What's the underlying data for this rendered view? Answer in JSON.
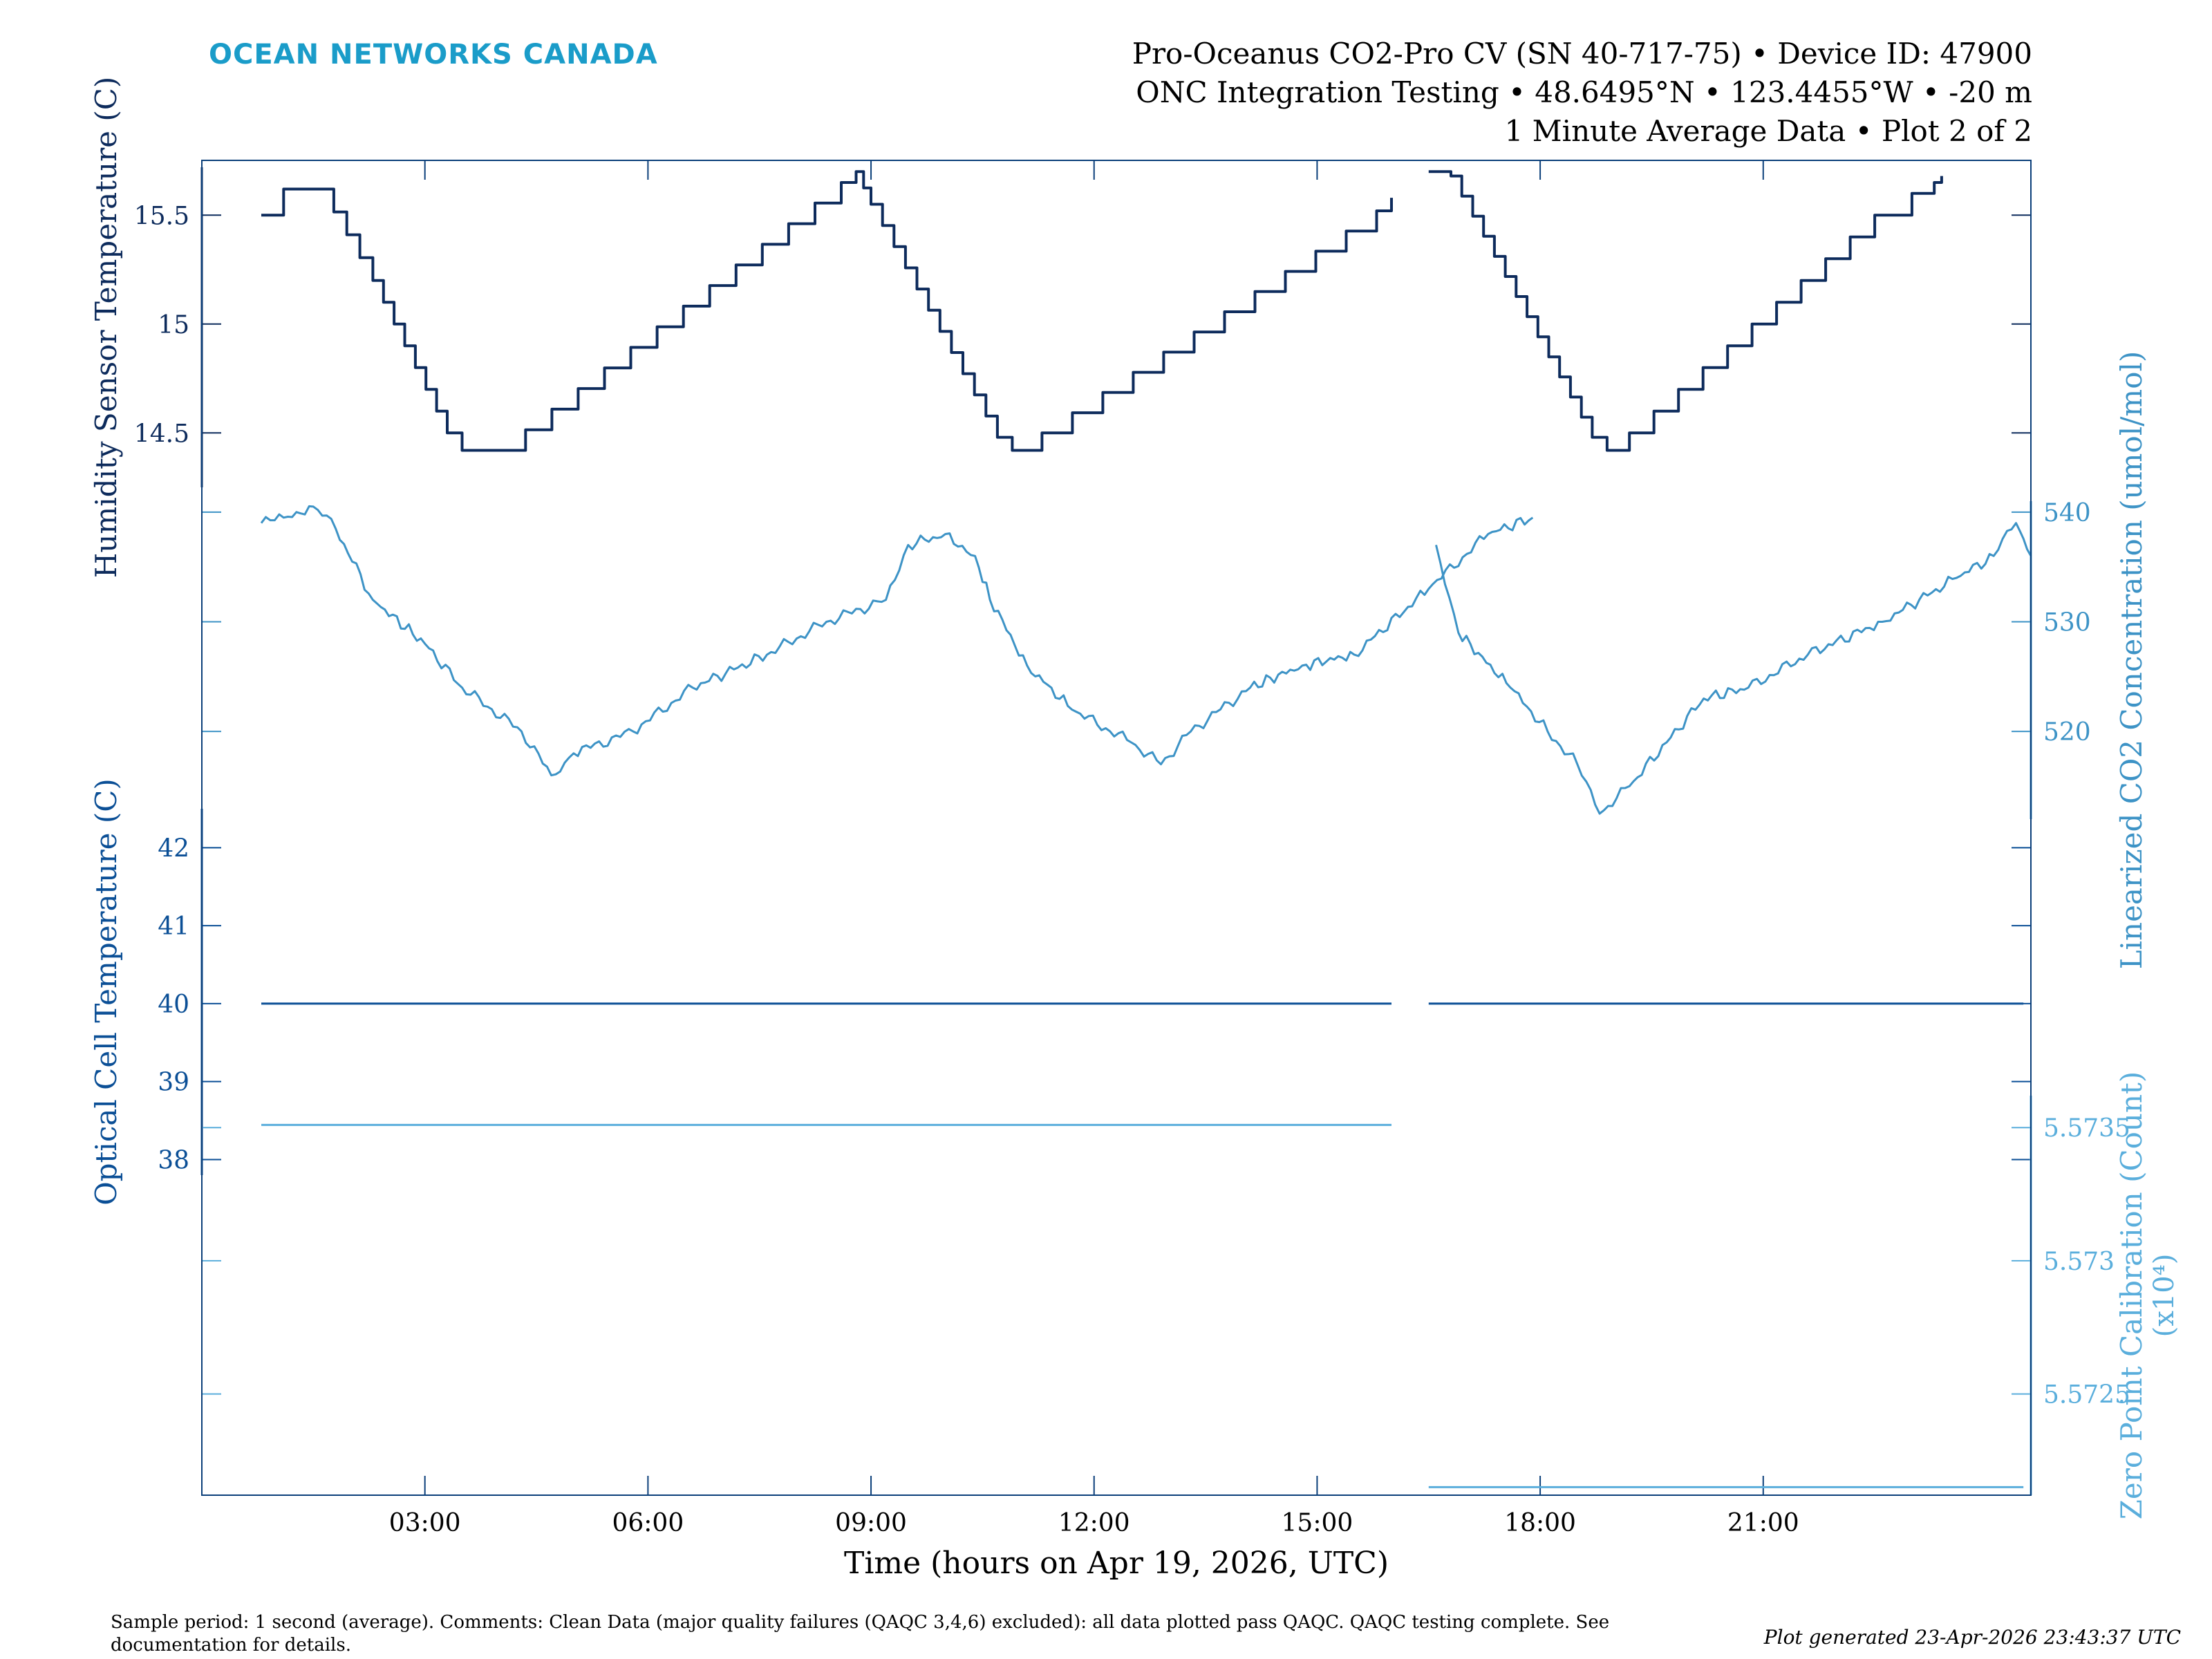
{
  "header": {
    "brand": "OCEAN NETWORKS CANADA",
    "title_line1": "Pro-Oceanus CO2-Pro CV (SN 40-717-75) • Device ID: 47900",
    "title_line2": "ONC Integration Testing • 48.6495°N • 123.4455°W • -20 m",
    "title_line3": "1 Minute Average Data • Plot 2 of 2"
  },
  "footer": {
    "comment_line1": "Sample period: 1 second (average). Comments: Clean Data (major quality failures (QAQC 3,4,6) excluded): all data plotted pass QAQC. QAQC testing complete. See",
    "comment_line2": "documentation for details.",
    "generated": "Plot generated 23-Apr-2026 23:43:37 UTC"
  },
  "colors": {
    "dark_navy": "#0d2b5c",
    "navy": "#0b4f96",
    "light_blue": "#3d93c6",
    "zero_blue": "#5aaedc",
    "brand": "#1a9cc9",
    "axis": "#0b3f7a"
  },
  "chart_data": {
    "type": "line",
    "xlabel": "Time (hours on Apr 19, 2026, UTC)",
    "xlim": [
      0,
      24.6
    ],
    "x_ticks": [
      3,
      6,
      9,
      12,
      15,
      18,
      21
    ],
    "x_tick_labels": [
      "03:00",
      "06:00",
      "09:00",
      "12:00",
      "15:00",
      "18:00",
      "21:00"
    ],
    "panels": [
      {
        "name": "Humidity Sensor Temperature",
        "ylabel": "Humidity Sensor Temperature (C)",
        "side": "left",
        "color": "#0d2b5c",
        "ylim": [
          14.25,
          15.72
        ],
        "ticks": [
          14.5,
          15,
          15.5
        ],
        "tick_labels": [
          "14.5",
          "15",
          "15.5"
        ],
        "stepped": true,
        "segments": [
          [
            [
              0.8,
              15.5
            ],
            [
              1.1,
              15.62
            ],
            [
              1.6,
              15.62
            ],
            [
              2.3,
              15.2
            ],
            [
              3.3,
              14.5
            ],
            [
              3.5,
              14.42
            ],
            [
              4.0,
              14.42
            ],
            [
              8.6,
              15.65
            ],
            [
              8.8,
              15.7
            ],
            [
              9.0,
              15.55
            ],
            [
              10.7,
              14.48
            ],
            [
              10.9,
              14.42
            ],
            [
              11.3,
              14.5
            ],
            [
              15.8,
              15.52
            ],
            [
              16.0,
              15.58
            ]
          ],
          [
            [
              16.5,
              15.7
            ],
            [
              16.8,
              15.68
            ],
            [
              18.7,
              14.48
            ],
            [
              18.9,
              14.42
            ],
            [
              19.2,
              14.5
            ],
            [
              22.5,
              15.5
            ],
            [
              23.0,
              15.6
            ],
            [
              23.3,
              15.65
            ],
            [
              23.4,
              15.68
            ]
          ]
        ]
      },
      {
        "name": "Linearized CO2 Concentration",
        "ylabel": "Linearized CO2 Concentration (umol/mol)",
        "side": "right",
        "color": "#3d93c6",
        "ylim": [
          512,
          541
        ],
        "ticks": [
          520,
          530,
          540
        ],
        "tick_labels": [
          "520",
          "530",
          "540"
        ],
        "stepped": false,
        "segments": [
          [
            [
              0.8,
              539
            ],
            [
              1.1,
              539.5
            ],
            [
              1.5,
              540.5
            ],
            [
              1.8,
              538.5
            ],
            [
              2.3,
              532
            ],
            [
              3.0,
              528
            ],
            [
              3.5,
              524
            ],
            [
              4.3,
              520
            ],
            [
              4.7,
              516
            ],
            [
              5.0,
              518
            ],
            [
              5.8,
              520
            ],
            [
              6.6,
              524
            ],
            [
              7.6,
              527
            ],
            [
              8.4,
              530
            ],
            [
              9.2,
              532
            ],
            [
              9.5,
              537
            ],
            [
              10.0,
              538
            ],
            [
              10.4,
              536
            ],
            [
              10.6,
              532
            ],
            [
              11.1,
              526
            ],
            [
              11.7,
              522
            ],
            [
              12.5,
              519
            ],
            [
              12.9,
              517
            ],
            [
              13.3,
              520
            ],
            [
              14.1,
              524
            ],
            [
              14.8,
              526
            ],
            [
              15.5,
              527
            ],
            [
              16.5,
              533
            ],
            [
              17.3,
              538
            ],
            [
              17.9,
              539.5
            ]
          ],
          [
            [
              16.6,
              537
            ],
            [
              16.9,
              529
            ],
            [
              17.6,
              524
            ],
            [
              18.1,
              520
            ],
            [
              18.5,
              517
            ],
            [
              18.8,
              512.5
            ],
            [
              19.2,
              515
            ],
            [
              19.7,
              519
            ],
            [
              20.2,
              523
            ],
            [
              20.8,
              524
            ],
            [
              21.6,
              527
            ],
            [
              22.6,
              530
            ],
            [
              23.6,
              534
            ],
            [
              24.1,
              536
            ],
            [
              24.4,
              539
            ],
            [
              24.6,
              536
            ]
          ]
        ]
      },
      {
        "name": "Optical Cell Temperature",
        "ylabel": "Optical Cell Temperature (C)",
        "side": "left",
        "color": "#0b4f96",
        "ylim": [
          37.8,
          42.5
        ],
        "ticks": [
          38,
          39,
          40,
          41,
          42
        ],
        "tick_labels": [
          "38",
          "39",
          "40",
          "41",
          "42"
        ],
        "stepped": false,
        "segments": [
          [
            [
              0.8,
              40
            ],
            [
              16.0,
              40
            ]
          ],
          [
            [
              16.5,
              40
            ],
            [
              24.5,
              40
            ]
          ]
        ]
      },
      {
        "name": "Zero Point Calibration",
        "ylabel": "Zero Point Calibration (Count)",
        "ylabel2": "(x10⁴)",
        "side": "right",
        "color": "#5aaedc",
        "ylim": [
          5.57212,
          5.57362
        ],
        "ticks": [
          5.5725,
          5.573,
          5.5735
        ],
        "tick_labels": [
          "5.5725",
          "5.573",
          "5.5735"
        ],
        "stepped": false,
        "segments": [
          [
            [
              0.8,
              5.57351
            ],
            [
              16.0,
              5.57351
            ]
          ],
          [
            [
              16.5,
              5.57215
            ],
            [
              24.5,
              5.57215
            ]
          ]
        ]
      }
    ]
  }
}
